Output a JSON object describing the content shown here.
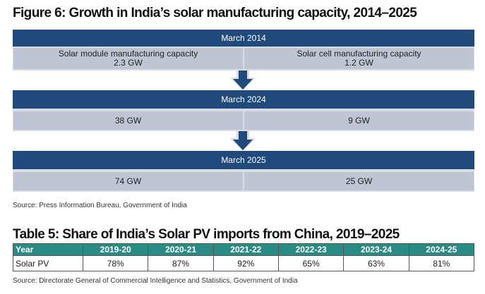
{
  "figure": {
    "title": "Figure 6: Growth in India’s solar manufacturing capacity, 2014–2025",
    "stages": [
      {
        "label": "March 2014",
        "module_label": "Solar module manufacturing capacity",
        "module": "2.3 GW",
        "cell_label": "Solar cell manufacturing capacity",
        "cell": "1.2 GW"
      },
      {
        "label": "March 2024",
        "module": "38 GW",
        "cell": "9 GW"
      },
      {
        "label": "March 2025",
        "module": "74 GW",
        "cell": "25 GW"
      }
    ],
    "source": "Source: Press Information Bureau, Government of India"
  },
  "table": {
    "title": "Table 5: Share of India’s Solar PV imports from China, 2019–2025",
    "headers": [
      "Year",
      "2019-20",
      "2020-21",
      "2021-22",
      "2022-23",
      "2023-24",
      "2024-25"
    ],
    "row": [
      "Solar PV",
      "78%",
      "87%",
      "92%",
      "65%",
      "63%",
      "81%"
    ],
    "source": "Source: Directorate General of Commercial Intelligence and Statistics, Government of India"
  },
  "colors": {
    "header": "#214a7c",
    "cell": "#c0c5d3",
    "table_header": "#2a8a84"
  }
}
